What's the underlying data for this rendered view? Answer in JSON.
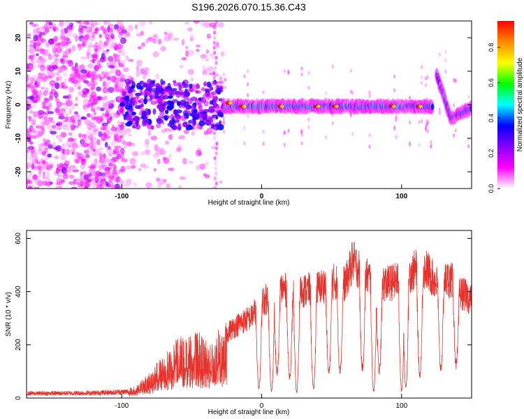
{
  "title": "S196.2026.070.15.36.C43",
  "chart_data": [
    {
      "type": "heatmap",
      "title": "S196.2026.070.15.36.C43",
      "xlabel": "Height of straight line (km)",
      "ylabel": "Frequency (Hz)",
      "xlim": [
        -168,
        150
      ],
      "ylim": [
        -25,
        25
      ],
      "xticks": [
        -100,
        0,
        100
      ],
      "yticks": [
        -20,
        -10,
        0,
        10,
        20
      ],
      "colorbar": {
        "label": "Normalized spectral amplitude",
        "range": [
          0,
          0.95
        ],
        "ticks": [
          0,
          0.2,
          0.4,
          0.6,
          0.8
        ],
        "tick_labels": [
          "0.0",
          "0.2",
          "0.4",
          "0.6",
          "0.8"
        ],
        "colors": [
          "#ffffff",
          "#ff00ff",
          "#8800ff",
          "#0000ff",
          "#00ffff",
          "#00ff00",
          "#ffff00",
          "#ff8800",
          "#ff0000"
        ]
      },
      "segments": [
        {
          "x0": -168,
          "x1": -100,
          "f0": 0,
          "f1": 0,
          "amp": 0.15,
          "note": "diffuse noise"
        },
        {
          "x0": -100,
          "x1": -35,
          "f0": 0,
          "f1": 0,
          "amp": 0.3,
          "note": "scattered"
        },
        {
          "x0": -28,
          "x1": 122,
          "f0": -0.5,
          "f1": -0.5,
          "amp": 0.55,
          "note": "steady band"
        },
        {
          "x0": 125,
          "x1": 135,
          "f0": 9,
          "f1": -4,
          "amp": 0.5,
          "note": "descending"
        },
        {
          "x0": 135,
          "x1": 150,
          "f0": -4,
          "f1": -1,
          "amp": 0.45,
          "note": "recovering"
        }
      ],
      "hotspots": [
        {
          "x": -24,
          "f": 0.5
        },
        {
          "x": -14,
          "f": -0.5
        },
        {
          "x": 13,
          "f": -0.5
        },
        {
          "x": 39,
          "f": -0.5
        },
        {
          "x": 52,
          "f": -0.5
        },
        {
          "x": 93,
          "f": -0.5
        },
        {
          "x": 112,
          "f": -0.5
        }
      ]
    },
    {
      "type": "line",
      "xlabel": "Height of straight line (km)",
      "ylabel": "SNR (10 * v/v)",
      "xlim": [
        -168,
        150
      ],
      "ylim": [
        0,
        630
      ],
      "xticks": [
        -100,
        0,
        100
      ],
      "yticks": [
        0,
        200,
        400,
        600
      ],
      "color": "#e8322c",
      "envelope": {
        "x": [
          -168,
          -120,
          -95,
          -88,
          -78,
          -70,
          -60,
          -52,
          -45,
          -38,
          -30,
          -25,
          -15,
          -8,
          0,
          8,
          15,
          22,
          30,
          40,
          50,
          60,
          65,
          70,
          80,
          90,
          100,
          110,
          118,
          125,
          135,
          140,
          150
        ],
        "y": [
          25,
          28,
          35,
          55,
          110,
          175,
          230,
          240,
          250,
          210,
          265,
          285,
          330,
          350,
          420,
          450,
          480,
          450,
          470,
          480,
          510,
          500,
          600,
          560,
          510,
          500,
          520,
          560,
          560,
          500,
          520,
          470,
          430
        ]
      },
      "dips": [
        {
          "x": -2,
          "y": 45
        },
        {
          "x": 7,
          "y": 30
        },
        {
          "x": 11,
          "y": 110
        },
        {
          "x": 20,
          "y": 95
        },
        {
          "x": 25,
          "y": 25
        },
        {
          "x": 37,
          "y": 40
        },
        {
          "x": 48,
          "y": 110
        },
        {
          "x": 56,
          "y": 120
        },
        {
          "x": 72,
          "y": 130
        },
        {
          "x": 80,
          "y": 30
        },
        {
          "x": 84,
          "y": 120
        },
        {
          "x": 100,
          "y": 30
        },
        {
          "x": 103,
          "y": 50
        },
        {
          "x": 113,
          "y": 100
        },
        {
          "x": 128,
          "y": 130
        },
        {
          "x": 139,
          "y": 145
        }
      ]
    }
  ]
}
